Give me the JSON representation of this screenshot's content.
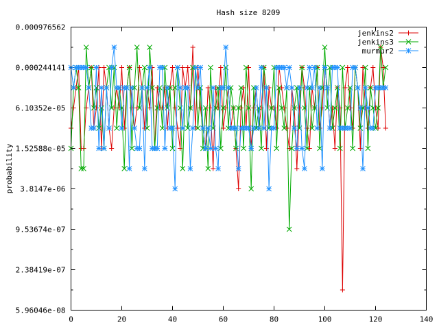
{
  "chart_data": {
    "type": "line",
    "title": "Hash size 8209",
    "xlabel": "",
    "ylabel": "probability",
    "xlim": [
      0,
      140
    ],
    "ylim_exponent": [
      -24,
      -10
    ],
    "y_scale": "log",
    "x_ticks": [
      {
        "value": 0,
        "label": "0"
      },
      {
        "value": 20,
        "label": "20"
      },
      {
        "value": 40,
        "label": "40"
      },
      {
        "value": 60,
        "label": "60"
      },
      {
        "value": 80,
        "label": "80"
      },
      {
        "value": 100,
        "label": "100"
      },
      {
        "value": 120,
        "label": "120"
      },
      {
        "value": 140,
        "label": "140"
      }
    ],
    "y_ticks": [
      {
        "exp": -10,
        "label": "0.000976562"
      },
      {
        "exp": -12,
        "label": "0.000244141"
      },
      {
        "exp": -14,
        "label": "6.10352e-05"
      },
      {
        "exp": -16,
        "label": "1.52588e-05"
      },
      {
        "exp": -18,
        "label": "3.8147e-06"
      },
      {
        "exp": -20,
        "label": "9.53674e-07"
      },
      {
        "exp": -22,
        "label": "2.38419e-07"
      },
      {
        "exp": -24,
        "label": "5.96046e-08"
      }
    ],
    "grid": false,
    "legend_position": "top-right",
    "series": [
      {
        "name": "jenkins2",
        "color": "#dd0000",
        "marker": "plus",
        "x_start": 0,
        "log2_values": [
          -15,
          -14,
          -13,
          -12,
          -16,
          -16,
          -14,
          -13,
          -12,
          -15,
          -14,
          -12,
          -16,
          -12,
          -13,
          -15,
          -16,
          -14,
          -13,
          -14,
          -12,
          -15,
          -13,
          -12,
          -14,
          -15,
          -14,
          -12,
          -13,
          -15,
          -13,
          -14,
          -12,
          -16,
          -13,
          -14,
          -14,
          -13,
          -15,
          -13,
          -12,
          -14,
          -15,
          -16,
          -12,
          -13,
          -12,
          -14,
          -11,
          -15,
          -12,
          -14,
          -15,
          -16,
          -13,
          -14,
          -17,
          -13,
          -14,
          -12,
          -15,
          -14,
          -13,
          -15,
          -14,
          -16,
          -18,
          -14,
          -13,
          -15,
          -12,
          -16,
          -14,
          -13,
          -15,
          -14,
          -12,
          -16,
          -13,
          -14,
          -14,
          -15,
          -12,
          -13,
          -14,
          -15,
          -16,
          -13,
          -14,
          -17,
          -14,
          -12,
          -13,
          -15,
          -16,
          -13,
          -14,
          -12,
          -15,
          -14,
          -12,
          -13,
          -15,
          -14,
          -16,
          -13,
          -14,
          -23,
          -13,
          -12,
          -14,
          -15,
          -12,
          -13,
          -16,
          -12,
          -14,
          -15,
          -13,
          -12,
          -14,
          -15,
          -11,
          -12,
          -15
        ]
      },
      {
        "name": "jenkins3",
        "color": "#00aa00",
        "marker": "cross",
        "x_start": 0,
        "log2_values": [
          -16,
          -13,
          -12,
          -13,
          -17,
          -17,
          -11,
          -13,
          -12,
          -14,
          -13,
          -15,
          -14,
          -16,
          -13,
          -12,
          -14,
          -12,
          -15,
          -13,
          -14,
          -17,
          -13,
          -12,
          -16,
          -13,
          -11,
          -14,
          -13,
          -12,
          -15,
          -11,
          -13,
          -16,
          -14,
          -13,
          -15,
          -12,
          -14,
          -13,
          -16,
          -13,
          -12,
          -14,
          -17,
          -13,
          -15,
          -14,
          -12,
          -12,
          -15,
          -13,
          -16,
          -14,
          -17,
          -12,
          -15,
          -14,
          -13,
          -16,
          -14,
          -12,
          -15,
          -13,
          -14,
          -16,
          -14,
          -13,
          -16,
          -12,
          -14,
          -18,
          -13,
          -15,
          -14,
          -16,
          -12,
          -13,
          -15,
          -14,
          -12,
          -16,
          -13,
          -14,
          -15,
          -13,
          -20,
          -16,
          -14,
          -13,
          -15,
          -12,
          -14,
          -16,
          -13,
          -15,
          -14,
          -12,
          -16,
          -13,
          -11,
          -14,
          -12,
          -15,
          -14,
          -13,
          -16,
          -12,
          -15,
          -14,
          -13,
          -16,
          -12,
          -13,
          -15,
          -14,
          -12,
          -16,
          -13,
          -14,
          -15,
          -14,
          -11,
          -13,
          -12
        ]
      },
      {
        "name": "murmur2",
        "color": "#1e90ff",
        "marker": "star",
        "x_start": 0,
        "log2_values": [
          -12,
          -13,
          -12,
          -12,
          -12,
          -12,
          -12,
          -13,
          -15,
          -15,
          -12,
          -16,
          -13,
          -16,
          -13,
          -15,
          -12,
          -11,
          -13,
          -13,
          -15,
          -13,
          -13,
          -17,
          -13,
          -15,
          -16,
          -16,
          -13,
          -17,
          -13,
          -12,
          -16,
          -16,
          -16,
          -12,
          -12,
          -16,
          -13,
          -15,
          -15,
          -18,
          -12,
          -13,
          -15,
          -13,
          -13,
          -17,
          -15,
          -12,
          -13,
          -12,
          -15,
          -16,
          -15,
          -16,
          -13,
          -16,
          -17,
          -13,
          -13,
          -11,
          -13,
          -15,
          -15,
          -15,
          -17,
          -15,
          -15,
          -15,
          -15,
          -16,
          -15,
          -13,
          -15,
          -12,
          -15,
          -13,
          -18,
          -15,
          -15,
          -12,
          -12,
          -12,
          -12,
          -13,
          -12,
          -13,
          -15,
          -16,
          -13,
          -16,
          -17,
          -13,
          -12,
          -13,
          -12,
          -15,
          -13,
          -17,
          -12,
          -13,
          -15,
          -12,
          -12,
          -12,
          -15,
          -15,
          -15,
          -15,
          -15,
          -12,
          -12,
          -13,
          -14,
          -17,
          -13,
          -14,
          -15,
          -15,
          -13,
          -13,
          -13,
          -13,
          -13
        ]
      }
    ]
  }
}
